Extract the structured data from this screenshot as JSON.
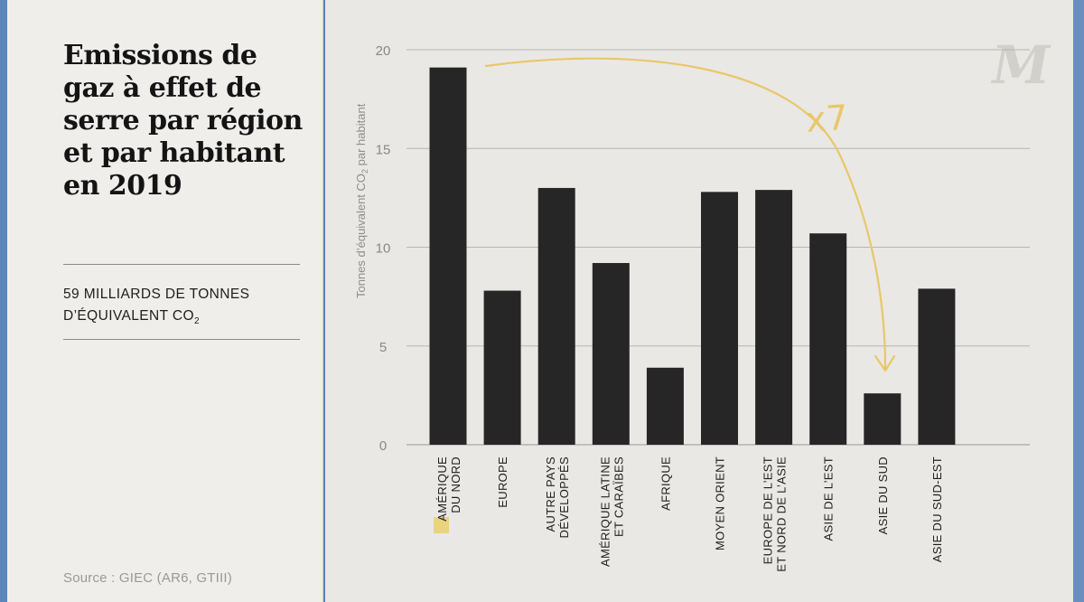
{
  "title": "Emissions de gaz à effet de serre par région et par habitant en 2019",
  "subtitle": {
    "line1": "59 MILLIARDS DE TONNES",
    "line2_prefix": "D’ÉQUIVALENT CO",
    "line2_sub": "2"
  },
  "source": "Source : GIEC (AR6, GTIII)",
  "logo": "M",
  "annotation": "x7",
  "colors": {
    "bar": "#262626",
    "arrow": "#e9c768",
    "grid": "#b6b5b1",
    "highlight": "#e9cc5c"
  },
  "chart_data": {
    "type": "bar",
    "title": "Emissions de gaz à effet de serre par région et par habitant en 2019",
    "xlabel": "",
    "ylabel_prefix": "Tonnes d’équivalent CO",
    "ylabel_sub": "2",
    "ylabel_suffix": " par habitant",
    "ylim": [
      0,
      20
    ],
    "yticks": [
      0,
      5,
      10,
      15,
      20
    ],
    "grid": true,
    "categories": [
      [
        "AMÉRIQUE",
        "DU NORD"
      ],
      [
        "EUROPE"
      ],
      [
        "AUTRE PAYS",
        "DÉVELOPPÉS"
      ],
      [
        "AMÉRIQUE LATINE",
        "ET CARAÏBES"
      ],
      [
        "AFRIQUE"
      ],
      [
        "MOYEN ORIENT"
      ],
      [
        "EUROPE DE L’EST",
        "ET NORD DE L’ASIE"
      ],
      [
        "ASIE DE L’EST"
      ],
      [
        "ASIE DU SUD"
      ],
      [
        "ASIE DU SUD-EST"
      ]
    ],
    "values": [
      19.1,
      7.8,
      13.0,
      9.2,
      3.9,
      12.8,
      12.9,
      10.7,
      2.6,
      7.9
    ]
  }
}
